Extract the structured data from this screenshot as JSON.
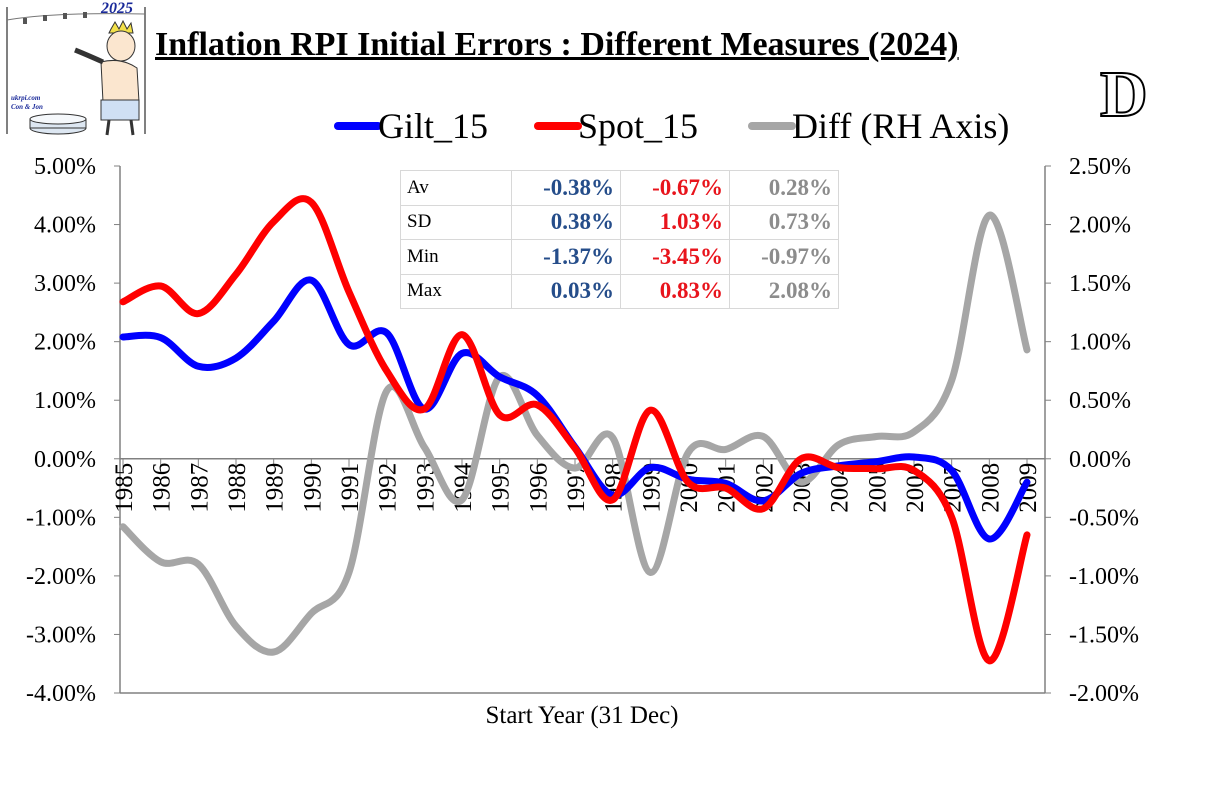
{
  "title": "Inflation RPI Initial Errors : Different Measures (2024)",
  "panel_letter": "D",
  "logo": {
    "year": "2025",
    "site_line1": "ukrpi.com",
    "site_line2": "Con & Jon"
  },
  "stats": {
    "rows": [
      {
        "label": "Av",
        "gilt": "-0.38%",
        "spot": "-0.67%",
        "diff": "0.28%"
      },
      {
        "label": "SD",
        "gilt": "0.38%",
        "spot": "1.03%",
        "diff": "0.73%"
      },
      {
        "label": "Min",
        "gilt": "-1.37%",
        "spot": "-3.45%",
        "diff": "-0.97%"
      },
      {
        "label": "Max",
        "gilt": "0.03%",
        "spot": "0.83%",
        "diff": "2.08%"
      }
    ]
  },
  "chart_data": {
    "type": "line",
    "title": "Inflation RPI Initial Errors : Different Measures (2024)",
    "xlabel": "Start Year (31 Dec)",
    "x": [
      1985,
      1986,
      1987,
      1988,
      1989,
      1990,
      1991,
      1992,
      1993,
      1994,
      1995,
      1996,
      1997,
      1998,
      1999,
      2000,
      2001,
      2002,
      2003,
      2004,
      2005,
      2006,
      2007,
      2008,
      2009
    ],
    "ylim": [
      -4,
      5
    ],
    "y2lim": [
      -2,
      2.5
    ],
    "y_ticks": [
      "5.00%",
      "4.00%",
      "3.00%",
      "2.00%",
      "1.00%",
      "0.00%",
      "-1.00%",
      "-2.00%",
      "-3.00%",
      "-4.00%"
    ],
    "y2_ticks": [
      "2.50%",
      "2.00%",
      "1.50%",
      "1.00%",
      "0.50%",
      "0.00%",
      "-0.50%",
      "-1.00%",
      "-1.50%",
      "-2.00%"
    ],
    "legend_placement": "top",
    "grid": false,
    "series": [
      {
        "name": "Gilt_15",
        "axis": "left",
        "color": "#0000ff",
        "values": [
          2.08,
          2.07,
          1.58,
          1.72,
          2.35,
          3.05,
          1.95,
          2.15,
          0.85,
          1.8,
          1.4,
          1.08,
          0.2,
          -0.62,
          -0.15,
          -0.35,
          -0.42,
          -0.72,
          -0.25,
          -0.12,
          -0.05,
          0.03,
          -0.2,
          -1.37,
          -0.4
        ]
      },
      {
        "name": "Spot_15",
        "axis": "left",
        "color": "#ff0000",
        "values": [
          2.68,
          2.95,
          2.48,
          3.15,
          4.05,
          4.38,
          2.85,
          1.5,
          0.85,
          2.12,
          0.75,
          0.92,
          0.18,
          -0.7,
          0.83,
          -0.4,
          -0.5,
          -0.85,
          0.0,
          -0.15,
          -0.17,
          -0.2,
          -1.0,
          -3.45,
          -1.3
        ]
      },
      {
        "name": "Diff (RH Axis)",
        "axis": "right",
        "color": "#a6a6a6",
        "values": [
          -0.58,
          -0.88,
          -0.9,
          -1.43,
          -1.65,
          -1.32,
          -0.97,
          0.58,
          0.1,
          -0.35,
          0.7,
          0.2,
          -0.08,
          0.18,
          -0.97,
          0.05,
          0.08,
          0.19,
          -0.2,
          0.12,
          0.19,
          0.23,
          0.67,
          2.08,
          0.93
        ]
      }
    ]
  }
}
